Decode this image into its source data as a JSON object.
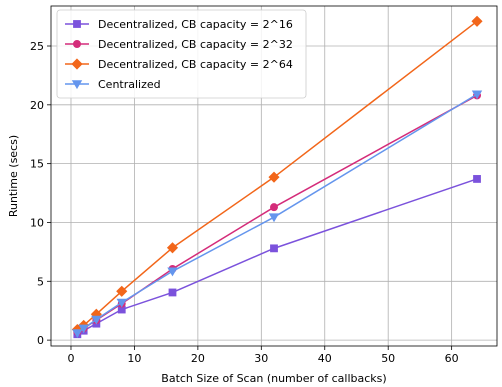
{
  "chart_data": {
    "type": "line",
    "title": "",
    "xlabel": "Batch Size of Scan (number of callbacks)",
    "ylabel": "Runtime (secs)",
    "xlim": [
      -3.15,
      67.15
    ],
    "ylim": [
      -0.5,
      28.4
    ],
    "xticks": [
      0,
      10,
      20,
      30,
      40,
      50,
      60
    ],
    "yticks": [
      0,
      5,
      10,
      15,
      20,
      25
    ],
    "grid": true,
    "legend_position": "top-left",
    "series": [
      {
        "name": "Decentralized, CB capacity = 2^16",
        "color": "#7b52dc",
        "marker": "square",
        "x": [
          1,
          2,
          4,
          8,
          16,
          32,
          64
        ],
        "y": [
          0.5,
          0.8,
          1.4,
          2.6,
          4.05,
          7.8,
          13.7
        ]
      },
      {
        "name": "Decentralized, CB capacity = 2^32",
        "color": "#d42c7a",
        "marker": "circle",
        "x": [
          1,
          2,
          4,
          8,
          16,
          32,
          64
        ],
        "y": [
          0.7,
          1.0,
          1.7,
          3.1,
          6.05,
          11.3,
          20.8
        ]
      },
      {
        "name": "Decentralized, CB capacity = 2^64",
        "color": "#f2661a",
        "marker": "diamond",
        "x": [
          1,
          2,
          4,
          8,
          16,
          32,
          64
        ],
        "y": [
          0.9,
          1.25,
          2.2,
          4.15,
          7.85,
          13.85,
          27.1
        ]
      },
      {
        "name": "Centralized",
        "color": "#6495ed",
        "marker": "triangle-down",
        "x": [
          1,
          2,
          4,
          8,
          16,
          32,
          64
        ],
        "y": [
          0.6,
          1.0,
          1.75,
          3.2,
          5.85,
          10.45,
          20.9
        ]
      }
    ]
  }
}
